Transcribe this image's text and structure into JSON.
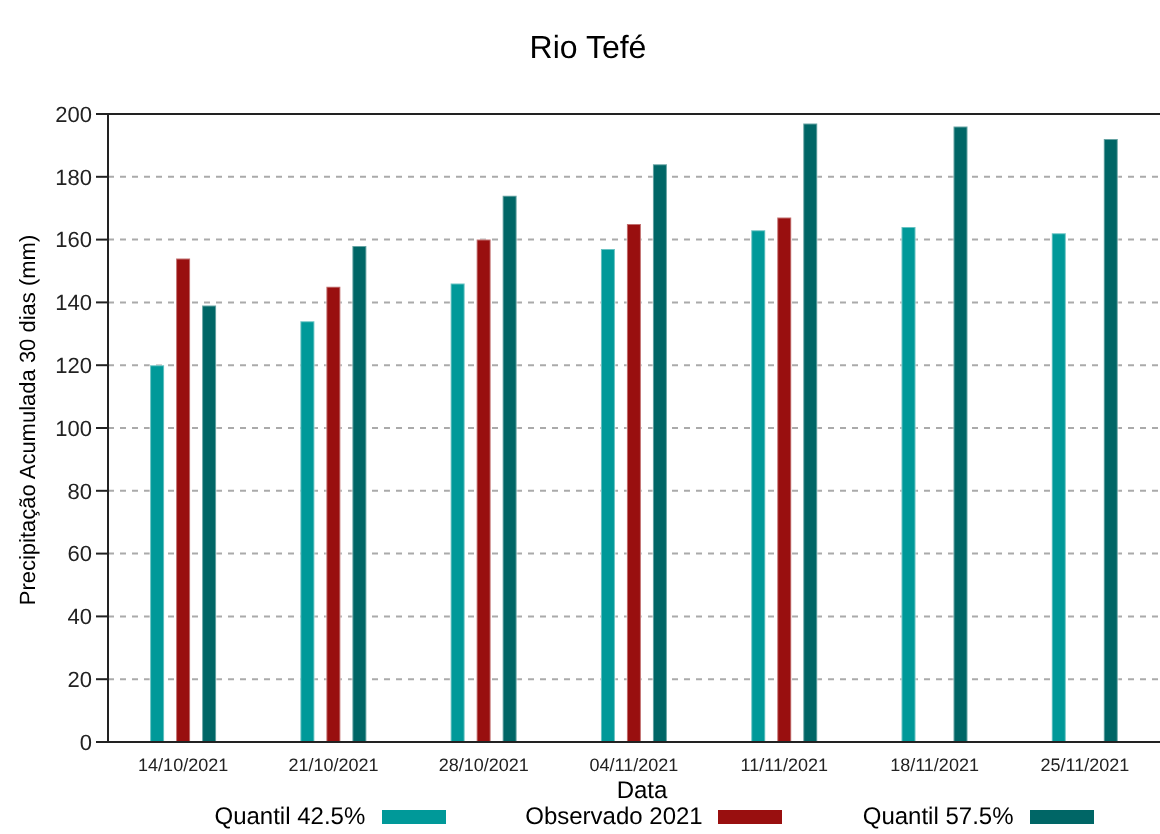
{
  "chart_data": {
    "type": "bar",
    "title": "Rio Tefé",
    "xlabel": "Data",
    "ylabel": "Precipitação Acumulada 30 dias (mm)",
    "categories": [
      "14/10/2021",
      "21/10/2021",
      "28/10/2021",
      "04/11/2021",
      "11/11/2021",
      "18/11/2021",
      "25/11/2021"
    ],
    "series": [
      {
        "name": "Quantil 42.5%",
        "color": "#009999",
        "values": [
          120,
          134,
          146,
          157,
          163,
          164,
          162
        ]
      },
      {
        "name": "Observado 2021",
        "color": "#990f0f",
        "values": [
          154,
          145,
          160,
          165,
          167,
          null,
          null
        ]
      },
      {
        "name": "Quantil 57.5%",
        "color": "#006666",
        "values": [
          139,
          158,
          174,
          184,
          197,
          196,
          192
        ]
      }
    ],
    "ylim": [
      0,
      200
    ],
    "yticks": [
      0,
      20,
      40,
      60,
      80,
      100,
      120,
      140,
      160,
      180,
      200
    ],
    "grid": "y",
    "legend": "bottom"
  }
}
